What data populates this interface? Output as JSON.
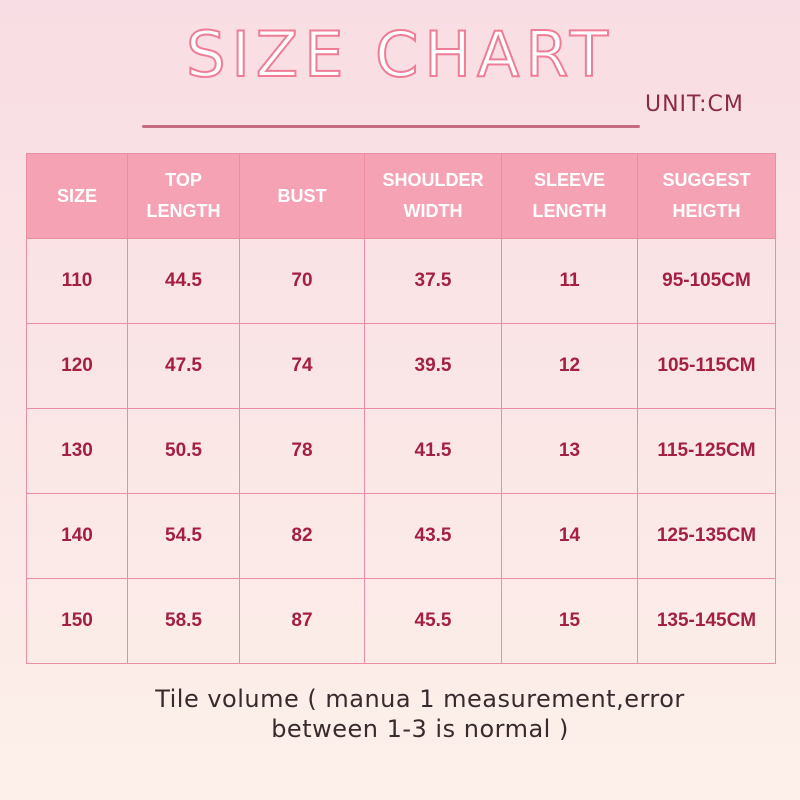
{
  "title": "SIZE CHART",
  "unit": "UNIT:CM",
  "table": {
    "headers": [
      {
        "line1": "SIZE",
        "line2": ""
      },
      {
        "line1": "TOP",
        "line2": "LENGTH"
      },
      {
        "line1": "BUST",
        "line2": ""
      },
      {
        "line1": "SHOULDER",
        "line2": "WIDTH"
      },
      {
        "line1": "SLEEVE",
        "line2": "LENGTH"
      },
      {
        "line1": "SUGGEST",
        "line2": "HEIGTH"
      }
    ],
    "rows": [
      [
        "110",
        "44.5",
        "70",
        "37.5",
        "11",
        "95-105CM"
      ],
      [
        "120",
        "47.5",
        "74",
        "39.5",
        "12",
        "105-115CM"
      ],
      [
        "130",
        "50.5",
        "78",
        "41.5",
        "13",
        "115-125CM"
      ],
      [
        "140",
        "54.5",
        "82",
        "43.5",
        "14",
        "125-135CM"
      ],
      [
        "150",
        "58.5",
        "87",
        "45.5",
        "15",
        "135-145CM"
      ]
    ]
  },
  "note": {
    "line1": "Tile volume ( manua 1 measurement,error",
    "line2": "between 1-3 is normal )"
  }
}
